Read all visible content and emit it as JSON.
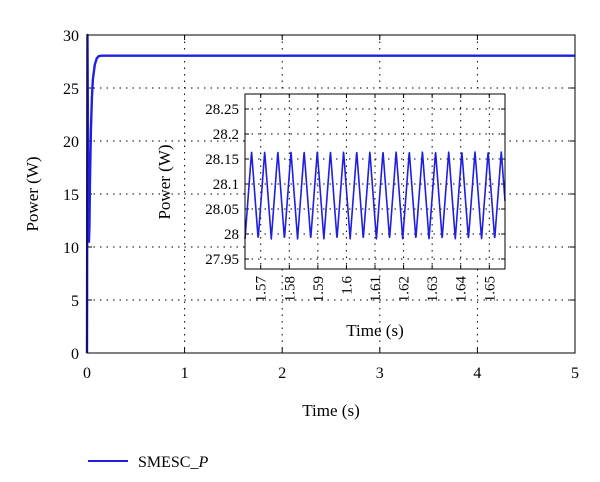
{
  "chart_data": [
    {
      "type": "line",
      "title": "",
      "xlabel": "Time (s)",
      "ylabel": "Power (W)",
      "xlim": [
        0,
        5
      ],
      "ylim": [
        0,
        30
      ],
      "x_ticks": [
        "0",
        "1",
        "2",
        "3",
        "4",
        "5"
      ],
      "y_ticks": [
        "0",
        "5",
        "10",
        "15",
        "20",
        "25",
        "30"
      ],
      "grid": true,
      "line_color": "#1f1fe0",
      "series": [
        {
          "name": "SMESC_P",
          "x": [
            0,
            0.005,
            0.01,
            0.015,
            0.02,
            0.025,
            0.03,
            0.04,
            0.05,
            0.06,
            0.08,
            0.1,
            0.12,
            0.15,
            0.2,
            0.3,
            5
          ],
          "y": [
            0,
            30,
            20,
            11,
            10.5,
            12,
            16,
            21,
            24,
            25.8,
            27.2,
            27.8,
            28.0,
            28.05,
            28.05,
            28.05,
            28.05
          ]
        }
      ]
    },
    {
      "type": "line",
      "title": "",
      "xlabel": "Time (s)",
      "ylabel": "Power (W)",
      "xlim": [
        1.5645,
        1.6555
      ],
      "ylim": [
        27.93,
        28.28
      ],
      "x_ticks": [
        "1.57",
        "1.58",
        "1.59",
        "1.6",
        "1.61",
        "1.62",
        "1.63",
        "1.64",
        "1.65"
      ],
      "y_ticks": [
        "27.95",
        "28",
        "28.05",
        "28.1",
        "28.15",
        "28.2",
        "28.25"
      ],
      "grid": true,
      "line_color": "#1f1fe0",
      "oscillation": {
        "min": 27.99,
        "max": 28.165,
        "period": 0.0046,
        "start": 1.5645,
        "end": 1.6555
      }
    }
  ],
  "legend": {
    "label": "SMESC_",
    "label_italic": "P",
    "position": "bottom-left"
  }
}
